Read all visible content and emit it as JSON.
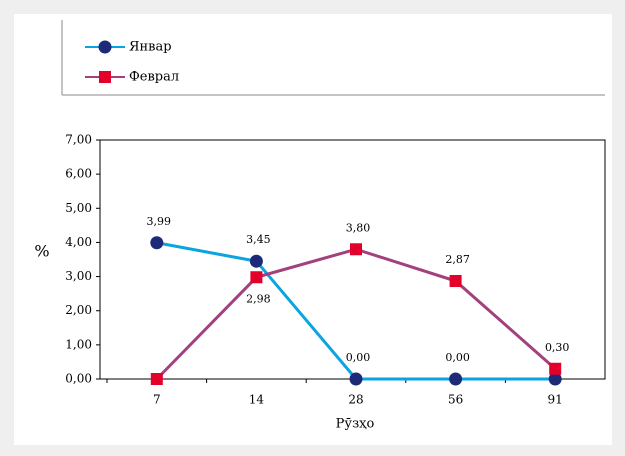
{
  "chart_data": {
    "type": "line",
    "x_label": "Рӯзҳо",
    "y_label": "%",
    "categories": [
      "7",
      "14",
      "28",
      "56",
      "91"
    ],
    "series": [
      {
        "name": "Январ",
        "color": "#0aa4e0",
        "marker": "circle",
        "marker_color": "#1c2a78",
        "values": [
          3.99,
          3.45,
          0,
          0,
          0
        ],
        "value_labels": [
          "3,99",
          "3,45",
          "0,00",
          "0,00",
          null
        ]
      },
      {
        "name": "Феврал",
        "color": "#a3407e",
        "marker": "square",
        "marker_color": "#e3002b",
        "values": [
          0,
          2.98,
          3.8,
          2.87,
          0.3
        ],
        "value_labels": [
          null,
          "2,98",
          "3,80",
          "2,87",
          "0,30"
        ]
      }
    ],
    "ylim": [
      0,
      7
    ],
    "yticks": [
      {
        "value": 0,
        "label": "0,00"
      },
      {
        "value": 1,
        "label": "1,00"
      },
      {
        "value": 2,
        "label": "2,00"
      },
      {
        "value": 3,
        "label": "3,00"
      },
      {
        "value": 4,
        "label": "4,00"
      },
      {
        "value": 5,
        "label": "5,00"
      },
      {
        "value": 6,
        "label": "6,00"
      },
      {
        "value": 7,
        "label": "7,00"
      }
    ],
    "grid": false,
    "legend": "top"
  }
}
